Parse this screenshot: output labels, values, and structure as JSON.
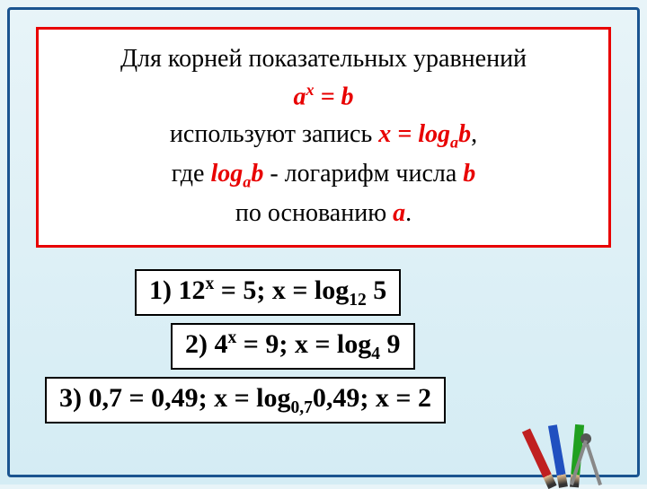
{
  "definition": {
    "line1": "Для корней показательных уравнений",
    "formula1_lhs_base": "a",
    "formula1_lhs_exp": "x",
    "formula1_eq": " = ",
    "formula1_rhs": "b",
    "line2_pre": "используют запись  ",
    "formula2_lhs": "x = log",
    "formula2_sub": "a",
    "formula2_rhs": "b",
    "line3_pre": "где ",
    "line3_log": "log",
    "line3_sub": "a",
    "line3_b": "b",
    "line3_post": "  - логарифм числа ",
    "line3_b2": "b",
    "line4_pre": "по основанию  ",
    "line4_a": "a",
    "line4_post": "."
  },
  "examples": {
    "ex1": {
      "num": "1) 12",
      "exp": "x",
      "mid": " = 5;   x = log",
      "sub": "12",
      "tail": " 5"
    },
    "ex2": {
      "num": "2) 4",
      "exp": "x",
      "mid": " = 9;   x = log",
      "sub": "4",
      "tail": " 9"
    },
    "ex3": {
      "num": "3) 0,7",
      "exp": "",
      "mid": "  = 0,49;   x = log",
      "sub": "0,7",
      "tail": "0,49;   x = 2"
    }
  },
  "colors": {
    "frame_border": "#1a5490",
    "red_border": "#e80000",
    "formula_red": "#e80000",
    "text_black": "#000000",
    "bg_gradient_top": "#e8f4f8",
    "bg_gradient_bottom": "#d4ecf4"
  }
}
